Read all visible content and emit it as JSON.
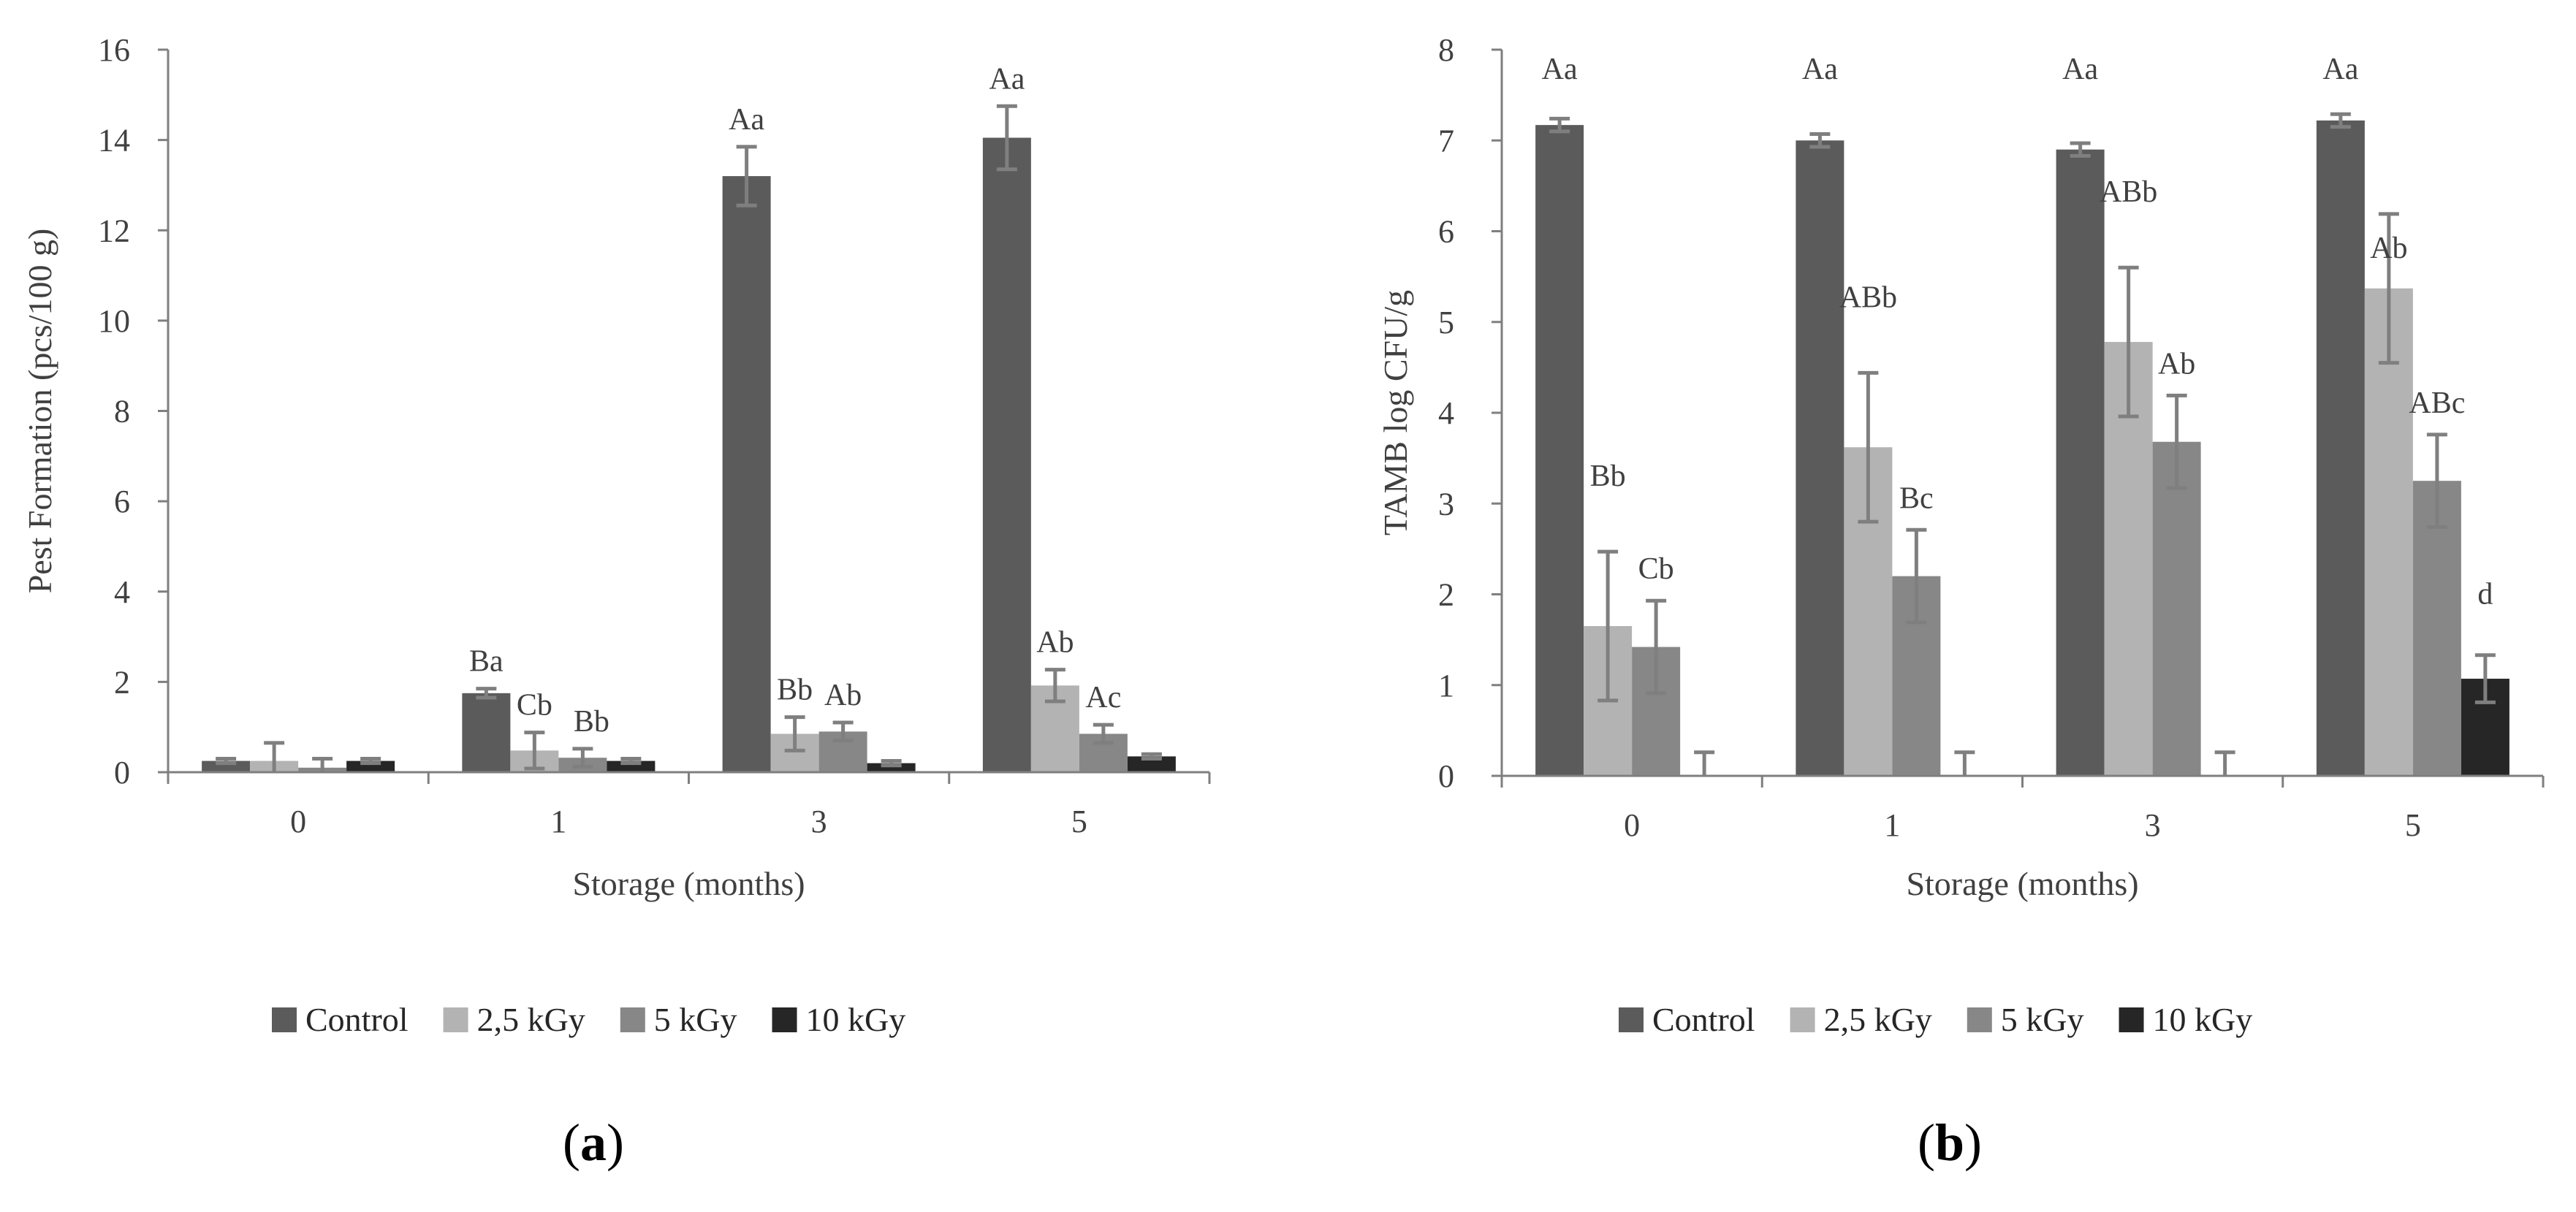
{
  "legend": {
    "items": [
      {
        "name": "Control",
        "color": "#5b5b5b"
      },
      {
        "name": "2,5 kGy",
        "color": "#b3b3b3"
      },
      {
        "name": "5 kGy",
        "color": "#878787"
      },
      {
        "name": "10 kGy",
        "color": "#262626"
      }
    ]
  },
  "chart_data": [
    {
      "panel": "a",
      "panel_label": "a",
      "type": "bar",
      "title": "",
      "xlabel": "Storage (months)",
      "ylabel": "Pest Formation (pcs/100 g)",
      "ylim": [
        0,
        16
      ],
      "yticks": [
        "0",
        "2",
        "4",
        "6",
        "8",
        "10",
        "12",
        "14",
        "16"
      ],
      "categories": [
        "0",
        "1",
        "3",
        "5"
      ],
      "series": [
        {
          "name": "Control",
          "color": "#5b5b5b",
          "values": [
            0.25,
            1.75,
            13.2,
            14.05
          ],
          "errors": [
            0.05,
            0.1,
            0.65,
            0.7
          ],
          "labels": [
            "",
            "Ba",
            "Aa",
            "Aa"
          ]
        },
        {
          "name": "2,5 kGy",
          "color": "#b3b3b3",
          "values": [
            0.25,
            0.48,
            0.85,
            1.92
          ],
          "errors": [
            0.4,
            0.4,
            0.37,
            0.35
          ],
          "labels": [
            "",
            "Cb",
            "Bb",
            "Ab"
          ]
        },
        {
          "name": "5 kGy",
          "color": "#878787",
          "values": [
            0.1,
            0.32,
            0.9,
            0.85
          ],
          "errors": [
            0.2,
            0.2,
            0.2,
            0.2
          ],
          "labels": [
            "",
            "Bb",
            "Ab",
            "Ac"
          ]
        },
        {
          "name": "10 kGy",
          "color": "#262626",
          "values": [
            0.25,
            0.25,
            0.2,
            0.35
          ],
          "errors": [
            0.05,
            0.05,
            0.05,
            0.05
          ],
          "labels": [
            "",
            "",
            "",
            ""
          ]
        }
      ]
    },
    {
      "panel": "b",
      "panel_label": "b",
      "type": "bar",
      "title": "",
      "xlabel": "Storage (months)",
      "ylabel": "TAMB log CFU/g",
      "ylim": [
        0,
        8
      ],
      "yticks": [
        "0",
        "1",
        "2",
        "3",
        "4",
        "5",
        "6",
        "7",
        "8"
      ],
      "categories": [
        "0",
        "1",
        "3",
        "5"
      ],
      "series": [
        {
          "name": "Control",
          "color": "#5b5b5b",
          "values": [
            7.17,
            7.0,
            6.9,
            7.22
          ],
          "errors": [
            0.07,
            0.07,
            0.07,
            0.07
          ],
          "labels": [
            "Aa",
            "Aa",
            "Aa",
            "Aa"
          ]
        },
        {
          "name": "2,5 kGy",
          "color": "#b3b3b3",
          "values": [
            1.65,
            3.62,
            4.78,
            5.37
          ],
          "errors": [
            0.82,
            0.82,
            0.82,
            0.82
          ],
          "labels": [
            "Bb",
            "ABb",
            "ABb",
            "Ab"
          ]
        },
        {
          "name": "5 kGy",
          "color": "#878787",
          "values": [
            1.42,
            2.2,
            3.68,
            3.25
          ],
          "errors": [
            0.51,
            0.51,
            0.51,
            0.51
          ],
          "labels": [
            "Cb",
            "Bc",
            "Ab",
            "ABc"
          ]
        },
        {
          "name": "10 kGy",
          "color": "#262626",
          "values": [
            0,
            0,
            0,
            1.07
          ],
          "errors": [
            0.26,
            0.26,
            0.26,
            0.26
          ],
          "labels": [
            "",
            "",
            "",
            "d"
          ]
        }
      ]
    }
  ]
}
